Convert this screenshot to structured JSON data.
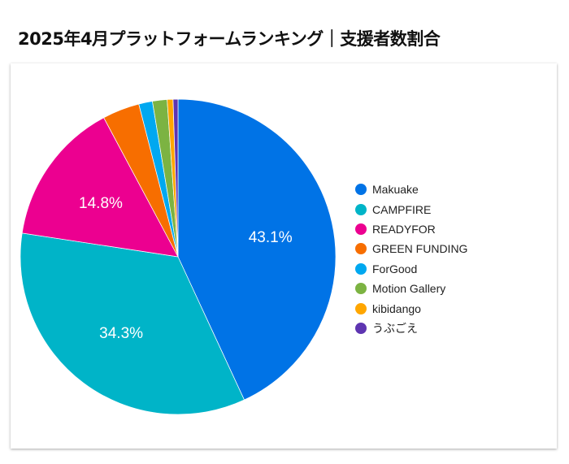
{
  "title": "2025年4月プラットフォームランキング｜支援者数割合",
  "chart_data": {
    "type": "pie",
    "title": "2025年4月プラットフォームランキング｜支援者数割合",
    "legend_position": "right",
    "slices": [
      {
        "label": "Makuake",
        "value": 43.1,
        "color": "#0073e6",
        "data_label": "43.1%"
      },
      {
        "label": "CAMPFIRE",
        "value": 34.3,
        "color": "#00b4c8",
        "data_label": "34.3%"
      },
      {
        "label": "READYFOR",
        "value": 14.8,
        "color": "#ec0090",
        "data_label": "14.8%"
      },
      {
        "label": "GREEN FUNDING",
        "value": 3.8,
        "color": "#f76e00",
        "data_label": ""
      },
      {
        "label": "ForGood",
        "value": 1.4,
        "color": "#00a8f0",
        "data_label": ""
      },
      {
        "label": "Motion Gallery",
        "value": 1.5,
        "color": "#7cb342",
        "data_label": ""
      },
      {
        "label": "kibidango",
        "value": 0.6,
        "color": "#ffa600",
        "data_label": ""
      },
      {
        "label": "うぶごえ",
        "value": 0.5,
        "color": "#5e35b1",
        "data_label": ""
      }
    ]
  }
}
